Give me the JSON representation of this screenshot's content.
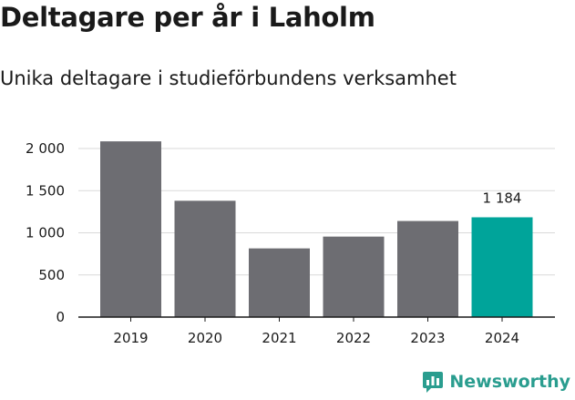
{
  "header": {
    "title": "Deltagare per år i Laholm",
    "subtitle": "Unika deltagare i studieförbundens verksamhet"
  },
  "brand": {
    "name": "Newsworthy",
    "logo_icon": "newsworthy-chart-icon"
  },
  "colors": {
    "default_bar": "#6d6d72",
    "highlight_bar": "#00a49a",
    "brand": "#2a9d8f",
    "grid": "#d9d9d9",
    "axis": "#1a1a1a"
  },
  "chart_data": {
    "type": "bar",
    "title": "Deltagare per år i Laholm",
    "subtitle": "Unika deltagare i studieförbundens verksamhet",
    "xlabel": "",
    "ylabel": "",
    "categories": [
      "2019",
      "2020",
      "2021",
      "2022",
      "2023",
      "2024"
    ],
    "values": [
      2085,
      1380,
      815,
      955,
      1140,
      1184
    ],
    "highlight_index": 5,
    "data_labels": [
      {
        "index": 5,
        "text": "1 184"
      }
    ],
    "ylim": [
      0,
      2000
    ],
    "yticks": [
      0,
      500,
      1000,
      1500,
      2000
    ],
    "ytick_labels": [
      "0",
      "500",
      "1 000",
      "1 500",
      "2 000"
    ],
    "grid": true,
    "legend": "none"
  }
}
